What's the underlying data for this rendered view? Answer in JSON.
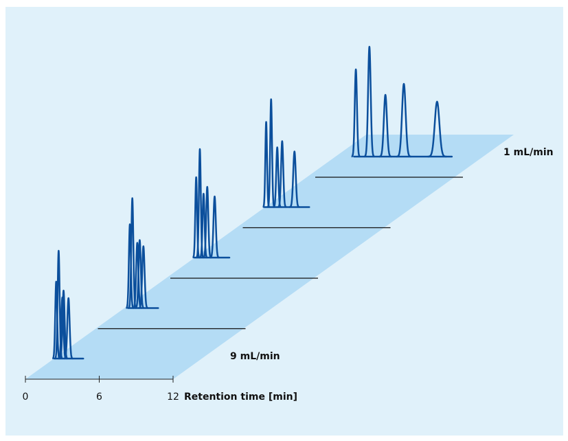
{
  "chart_data": {
    "type": "waterfall",
    "xlabel": "Retention time [min]",
    "xlim": [
      0,
      12
    ],
    "xticks": [
      0,
      6,
      12
    ],
    "annotations": [
      "9 mL/min",
      "1 mL/min"
    ],
    "color": "#0b4f9c",
    "series": [
      {
        "x": [
          2.5,
          2.7,
          3.0,
          3.1,
          3.5
        ],
        "values": [
          112,
          157,
          89,
          99,
          88
        ]
      },
      {
        "x": [
          2.6,
          2.8,
          3.2,
          3.4,
          3.7
        ],
        "values": [
          122,
          160,
          95,
          99,
          90
        ]
      },
      {
        "x": [
          2.1,
          2.4,
          2.7,
          3.0,
          3.6
        ],
        "values": [
          117,
          158,
          93,
          103,
          89
        ]
      },
      {
        "x": [
          1.9,
          2.3,
          2.8,
          3.2,
          4.2
        ],
        "values": [
          124,
          157,
          87,
          96,
          81
        ]
      },
      {
        "x": [
          3.3,
          4.4,
          5.7,
          7.2,
          9.9
        ],
        "values": [
          127,
          160,
          90,
          106,
          80
        ]
      }
    ]
  }
}
